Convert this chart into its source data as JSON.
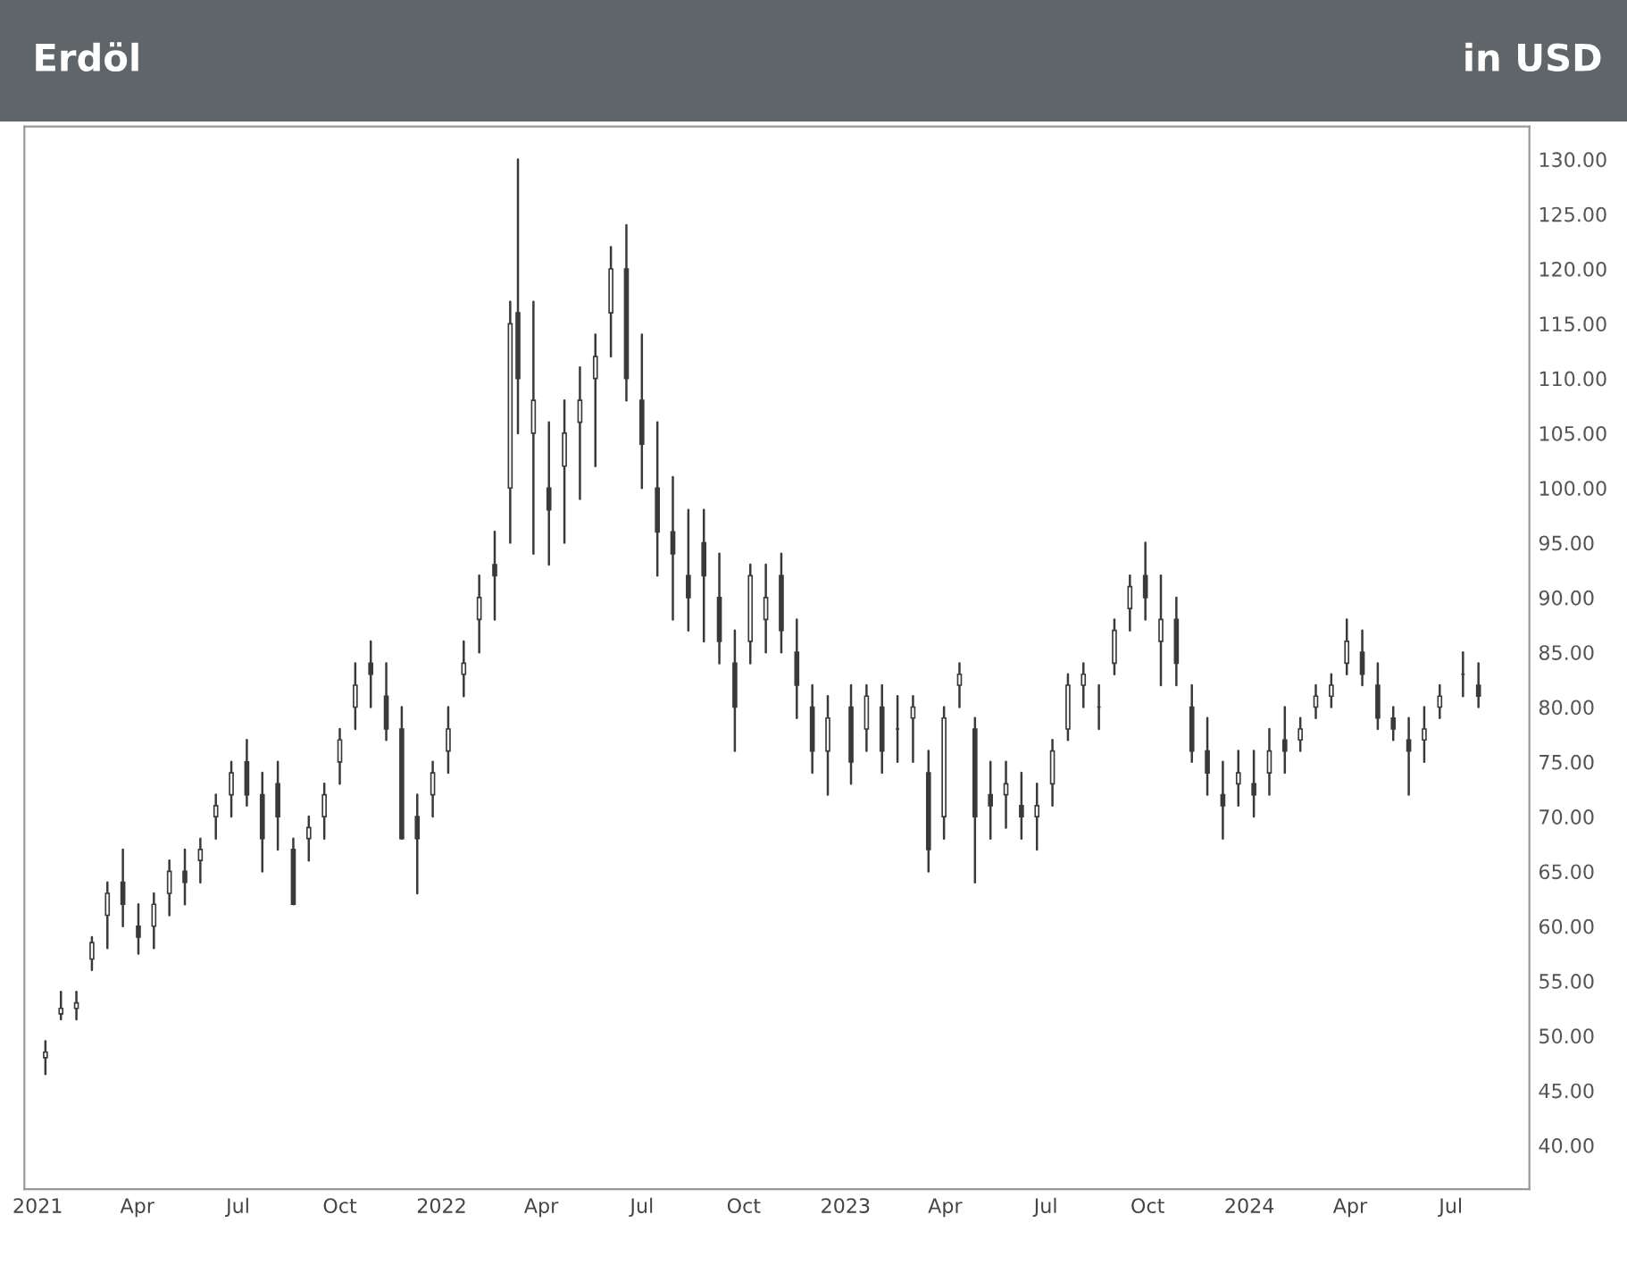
{
  "chart_data": {
    "type": "candlestick",
    "title": "Erdöl",
    "subtitle": "in USD",
    "color": "#3a3a3a",
    "x": [
      "2021-01-08",
      "2021-01-22",
      "2021-02-05",
      "2021-02-19",
      "2021-03-05",
      "2021-03-19",
      "2021-04-02",
      "2021-04-16",
      "2021-04-30",
      "2021-05-14",
      "2021-05-28",
      "2021-06-11",
      "2021-06-25",
      "2021-07-09",
      "2021-07-23",
      "2021-08-06",
      "2021-08-20",
      "2021-09-03",
      "2021-09-17",
      "2021-10-01",
      "2021-10-15",
      "2021-10-29",
      "2021-11-12",
      "2021-11-26",
      "2021-12-10",
      "2021-12-24",
      "2022-01-07",
      "2022-01-21",
      "2022-02-04",
      "2022-02-18",
      "2022-03-04",
      "2022-03-11",
      "2022-03-25",
      "2022-04-08",
      "2022-04-22",
      "2022-05-06",
      "2022-05-20",
      "2022-06-03",
      "2022-06-17",
      "2022-07-01",
      "2022-07-15",
      "2022-07-29",
      "2022-08-12",
      "2022-08-26",
      "2022-09-09",
      "2022-09-23",
      "2022-10-07",
      "2022-10-21",
      "2022-11-04",
      "2022-11-18",
      "2022-12-02",
      "2022-12-16",
      "2023-01-06",
      "2023-01-20",
      "2023-02-03",
      "2023-02-17",
      "2023-03-03",
      "2023-03-17",
      "2023-03-31",
      "2023-04-14",
      "2023-04-28",
      "2023-05-12",
      "2023-05-26",
      "2023-06-09",
      "2023-06-23",
      "2023-07-07",
      "2023-07-21",
      "2023-08-04",
      "2023-08-18",
      "2023-09-01",
      "2023-09-15",
      "2023-09-29",
      "2023-10-13",
      "2023-10-27",
      "2023-11-10",
      "2023-11-24",
      "2023-12-08",
      "2023-12-22",
      "2024-01-05",
      "2024-01-19",
      "2024-02-02",
      "2024-02-16",
      "2024-03-01",
      "2024-03-15",
      "2024-03-29",
      "2024-04-12",
      "2024-04-26",
      "2024-05-10",
      "2024-05-24",
      "2024-06-07",
      "2024-06-21",
      "2024-07-12",
      "2024-07-26"
    ],
    "ohlc": [
      [
        48,
        49.5,
        46.5,
        48.5
      ],
      [
        52,
        54,
        51.5,
        52.5
      ],
      [
        52.5,
        54,
        51.5,
        53
      ],
      [
        57,
        59,
        56,
        58.5
      ],
      [
        61,
        64,
        58,
        63
      ],
      [
        64,
        67,
        60,
        62
      ],
      [
        60,
        62,
        57.5,
        59
      ],
      [
        60,
        63,
        58,
        62
      ],
      [
        63,
        66,
        61,
        65
      ],
      [
        65,
        67,
        62,
        64
      ],
      [
        66,
        68,
        64,
        67
      ],
      [
        70,
        72,
        68,
        71
      ],
      [
        72,
        75,
        70,
        74
      ],
      [
        75,
        77,
        71,
        72
      ],
      [
        72,
        74,
        65,
        68
      ],
      [
        73,
        75,
        67,
        70
      ],
      [
        67,
        68,
        62,
        62
      ],
      [
        68,
        70,
        66,
        69
      ],
      [
        70,
        73,
        68,
        72
      ],
      [
        75,
        78,
        73,
        77
      ],
      [
        80,
        84,
        78,
        82
      ],
      [
        84,
        86,
        80,
        83
      ],
      [
        81,
        84,
        77,
        78
      ],
      [
        78,
        80,
        68,
        68
      ],
      [
        70,
        72,
        63,
        68
      ],
      [
        72,
        75,
        70,
        74
      ],
      [
        76,
        80,
        74,
        78
      ],
      [
        83,
        86,
        81,
        84
      ],
      [
        88,
        92,
        85,
        90
      ],
      [
        93,
        96,
        88,
        92
      ],
      [
        100,
        117,
        95,
        115
      ],
      [
        116,
        130,
        105,
        110
      ],
      [
        105,
        117,
        94,
        108
      ],
      [
        100,
        106,
        93,
        98
      ],
      [
        102,
        108,
        95,
        105
      ],
      [
        106,
        111,
        99,
        108
      ],
      [
        110,
        114,
        102,
        112
      ],
      [
        116,
        122,
        112,
        120
      ],
      [
        120,
        124,
        108,
        110
      ],
      [
        108,
        114,
        100,
        104
      ],
      [
        100,
        106,
        92,
        96
      ],
      [
        96,
        101,
        88,
        94
      ],
      [
        92,
        98,
        87,
        90
      ],
      [
        95,
        98,
        86,
        92
      ],
      [
        90,
        94,
        84,
        86
      ],
      [
        84,
        87,
        76,
        80
      ],
      [
        86,
        93,
        84,
        92
      ],
      [
        88,
        93,
        85,
        90
      ],
      [
        92,
        94,
        85,
        87
      ],
      [
        85,
        88,
        79,
        82
      ],
      [
        80,
        82,
        74,
        76
      ],
      [
        76,
        81,
        72,
        79
      ],
      [
        80,
        82,
        73,
        75
      ],
      [
        78,
        82,
        76,
        81
      ],
      [
        80,
        82,
        74,
        76
      ],
      [
        78,
        81,
        75,
        78
      ],
      [
        79,
        81,
        75,
        80
      ],
      [
        74,
        76,
        65,
        67
      ],
      [
        70,
        80,
        68,
        79
      ],
      [
        82,
        84,
        80,
        83
      ],
      [
        78,
        79,
        64,
        70
      ],
      [
        72,
        75,
        68,
        71
      ],
      [
        72,
        75,
        69,
        73
      ],
      [
        71,
        74,
        68,
        70
      ],
      [
        70,
        73,
        67,
        71
      ],
      [
        73,
        77,
        71,
        76
      ],
      [
        78,
        83,
        77,
        82
      ],
      [
        82,
        84,
        80,
        83
      ],
      [
        80,
        82,
        78,
        80
      ],
      [
        84,
        88,
        83,
        87
      ],
      [
        89,
        92,
        87,
        91
      ],
      [
        92,
        95,
        88,
        90
      ],
      [
        86,
        92,
        82,
        88
      ],
      [
        88,
        90,
        82,
        84
      ],
      [
        80,
        82,
        75,
        76
      ],
      [
        76,
        79,
        72,
        74
      ],
      [
        72,
        75,
        68,
        71
      ],
      [
        73,
        76,
        71,
        74
      ],
      [
        73,
        76,
        70,
        72
      ],
      [
        74,
        78,
        72,
        76
      ],
      [
        77,
        80,
        74,
        76
      ],
      [
        77,
        79,
        76,
        78
      ],
      [
        80,
        82,
        79,
        81
      ],
      [
        81,
        83,
        80,
        82
      ],
      [
        84,
        88,
        83,
        86
      ],
      [
        85,
        87,
        82,
        83
      ],
      [
        82,
        84,
        78,
        79
      ],
      [
        79,
        80,
        77,
        78
      ],
      [
        77,
        79,
        72,
        76
      ],
      [
        77,
        80,
        75,
        78
      ],
      [
        80,
        82,
        79,
        81
      ],
      [
        83,
        85,
        81,
        83
      ],
      [
        82,
        84,
        80,
        81
      ]
    ],
    "xlim": [
      "2020-12-20",
      "2024-09-10"
    ],
    "xticks": [
      {
        "value": "2021-01-01",
        "label": "2021"
      },
      {
        "value": "2021-04-01",
        "label": "Apr"
      },
      {
        "value": "2021-07-01",
        "label": "Jul"
      },
      {
        "value": "2021-10-01",
        "label": "Oct"
      },
      {
        "value": "2022-01-01",
        "label": "2022"
      },
      {
        "value": "2022-04-01",
        "label": "Apr"
      },
      {
        "value": "2022-07-01",
        "label": "Jul"
      },
      {
        "value": "2022-10-01",
        "label": "Oct"
      },
      {
        "value": "2023-01-01",
        "label": "2023"
      },
      {
        "value": "2023-04-01",
        "label": "Apr"
      },
      {
        "value": "2023-07-01",
        "label": "Jul"
      },
      {
        "value": "2023-10-01",
        "label": "Oct"
      },
      {
        "value": "2024-01-01",
        "label": "2024"
      },
      {
        "value": "2024-04-01",
        "label": "Apr"
      },
      {
        "value": "2024-07-01",
        "label": "Jul"
      }
    ],
    "ylim": [
      36,
      133
    ],
    "yticks": [
      {
        "value": 40,
        "label": "40.00"
      },
      {
        "value": 45,
        "label": "45.00"
      },
      {
        "value": 50,
        "label": "50.00"
      },
      {
        "value": 55,
        "label": "55.00"
      },
      {
        "value": 60,
        "label": "60.00"
      },
      {
        "value": 65,
        "label": "65.00"
      },
      {
        "value": 70,
        "label": "70.00"
      },
      {
        "value": 75,
        "label": "75.00"
      },
      {
        "value": 80,
        "label": "80.00"
      },
      {
        "value": 85,
        "label": "85.00"
      },
      {
        "value": 90,
        "label": "90.00"
      },
      {
        "value": 95,
        "label": "95.00"
      },
      {
        "value": 100,
        "label": "100.00"
      },
      {
        "value": 105,
        "label": "105.00"
      },
      {
        "value": 110,
        "label": "110.00"
      },
      {
        "value": 115,
        "label": "115.00"
      },
      {
        "value": 120,
        "label": "120.00"
      },
      {
        "value": 125,
        "label": "125.00"
      },
      {
        "value": 130,
        "label": "130.00"
      }
    ]
  }
}
